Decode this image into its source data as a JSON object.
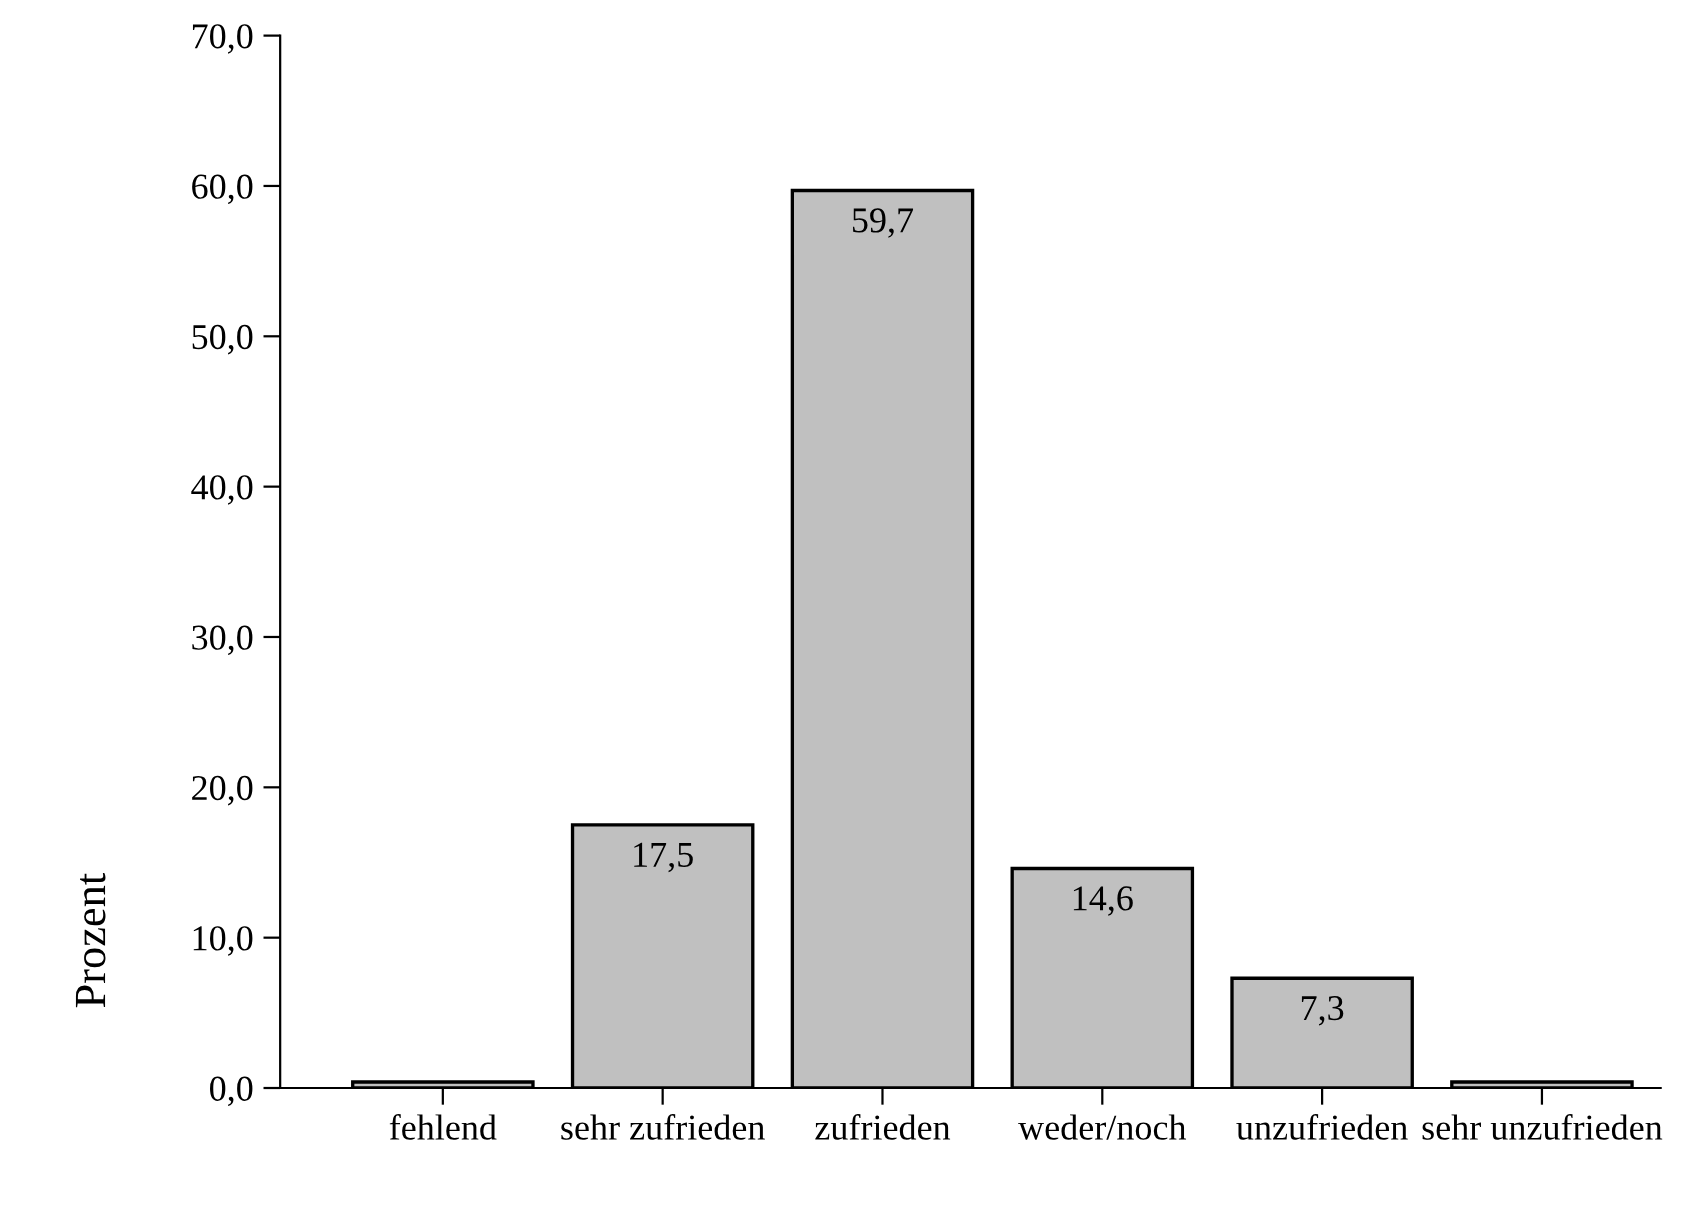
{
  "chart_data": {
    "type": "bar",
    "ylabel": "Prozent",
    "categories": [
      "fehlend",
      "sehr zufrieden",
      "zufrieden",
      "weder/noch",
      "unzufrieden",
      "sehr unzufrieden"
    ],
    "values": [
      0.4,
      17.5,
      59.7,
      14.6,
      7.3,
      0.4
    ],
    "value_labels": [
      null,
      "17,5",
      "59,7",
      "14,6",
      "7,3",
      null
    ],
    "color": "#c0c0c0",
    "ylim": [
      0,
      70
    ],
    "yticks": [
      {
        "value": 0,
        "label": "0,0"
      },
      {
        "value": 10,
        "label": "10,0"
      },
      {
        "value": 20,
        "label": "20,0"
      },
      {
        "value": 30,
        "label": "30,0"
      },
      {
        "value": 40,
        "label": "40,0"
      },
      {
        "value": 50,
        "label": "50,0"
      },
      {
        "value": 60,
        "label": "60,0"
      },
      {
        "value": 70,
        "label": "70,0"
      }
    ],
    "grid": false,
    "legend": false
  }
}
